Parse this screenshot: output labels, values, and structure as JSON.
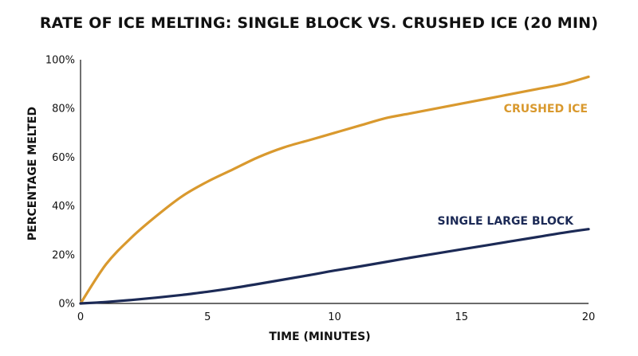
{
  "chart_data": {
    "type": "line",
    "title": "RATE OF ICE MELTING: SINGLE BLOCK VS. CRUSHED ICE (20 MIN)",
    "xlabel": "TIME (MINUTES)",
    "ylabel": "PERCENTAGE MELTED",
    "xlim": [
      0,
      20
    ],
    "ylim": [
      0,
      100
    ],
    "x_ticks": [
      "0",
      "5",
      "10",
      "15",
      "20"
    ],
    "y_ticks": [
      "0%",
      "20%",
      "40%",
      "60%",
      "80%",
      "100%"
    ],
    "grid": false,
    "x": [
      0,
      1,
      2,
      3,
      4,
      5,
      6,
      7,
      8,
      9,
      10,
      11,
      12,
      13,
      14,
      15,
      16,
      17,
      18,
      19,
      20
    ],
    "series": [
      {
        "name": "CRUSHED ICE",
        "color": "#d9992e",
        "values": [
          0,
          16,
          27,
          36,
          44,
          50,
          55,
          60,
          64,
          67,
          70,
          73,
          76,
          78,
          80,
          82,
          84,
          86,
          88,
          90,
          93
        ]
      },
      {
        "name": "SINGLE LARGE BLOCK",
        "color": "#1c2a56",
        "values": [
          0,
          0.6,
          1.4,
          2.4,
          3.5,
          4.8,
          6.3,
          8,
          9.8,
          11.6,
          13.5,
          15.2,
          17,
          18.8,
          20.5,
          22.2,
          23.9,
          25.6,
          27.3,
          29,
          30.5
        ]
      }
    ]
  }
}
